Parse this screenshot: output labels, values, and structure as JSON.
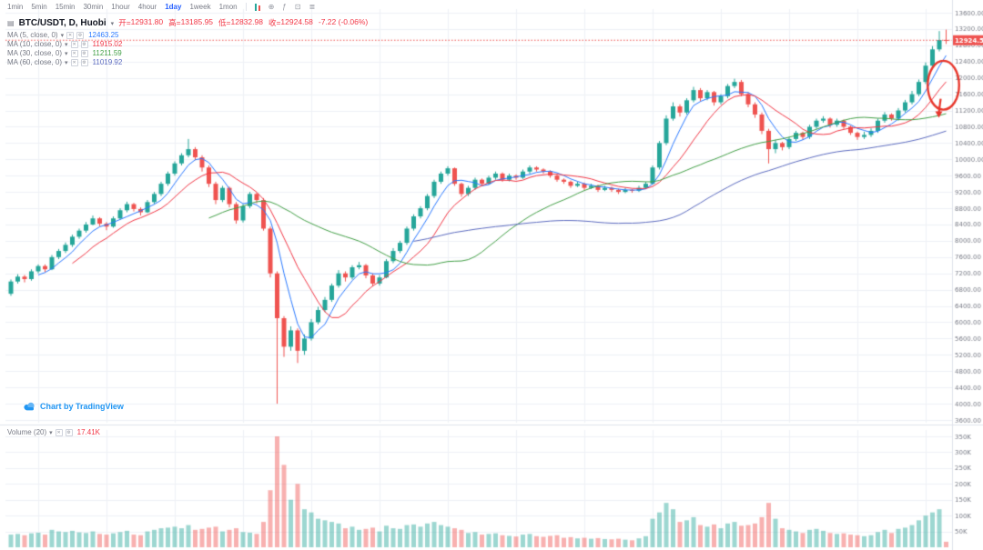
{
  "ui": {
    "caret_down": "▾",
    "hide_glyph": "✕",
    "settings_glyph": "⚙",
    "panel_icon": "▤"
  },
  "toolbar": {
    "timeframes": [
      "1min",
      "5min",
      "15min",
      "30min",
      "1hour",
      "4hour",
      "1day",
      "1week",
      "1mon"
    ],
    "active_timeframe": "1day",
    "active_color": "#2962ff",
    "icon_glyphs": {
      "compare": "⊕",
      "indicators": "ƒ",
      "screenshot": "⊡",
      "list": "≣"
    }
  },
  "header": {
    "symbol": "BTC/USDT, D, Huobi",
    "open_label": "开=",
    "open": "12931.80",
    "high_label": "高=",
    "high": "13185.95",
    "low_label": "低=",
    "low": "12832.98",
    "close_label": "收=",
    "close": "12924.58",
    "change": "-7.22 (-0.06%)",
    "change_color": "#f23645"
  },
  "indicators": {
    "ma": [
      {
        "label": "MA (5, close, 0)",
        "value": "12463.25",
        "color": "#2979ff"
      },
      {
        "label": "MA (10, close, 0)",
        "value": "11915.02",
        "color": "#f23645"
      },
      {
        "label": "MA (30, close, 0)",
        "value": "11211.59",
        "color": "#43a047"
      },
      {
        "label": "MA (60, close, 0)",
        "value": "11019.92",
        "color": "#5c6bc0"
      }
    ],
    "volume": {
      "label": "Volume (20)",
      "value": "17.41K",
      "color": "#f23645"
    }
  },
  "attribution": {
    "text": "Chart by TradingView"
  },
  "chart_data": {
    "type": "candlestick",
    "symbol": "BTC/USDT",
    "interval": "D",
    "exchange": "Huobi",
    "last_price": 12924.58,
    "price_axis": {
      "min": 3600,
      "max": 13600,
      "tick_step": 400
    },
    "volume_axis": {
      "scale_max": 350,
      "tick_values": [
        350,
        300,
        250,
        200,
        150,
        100,
        50
      ],
      "unit": "K"
    },
    "up_color": "#26a69a",
    "down_color": "#ef5350",
    "vol_up_color": "rgba(38,166,154,0.45)",
    "vol_down_color": "rgba(239,83,80,0.45)",
    "ma_periods": [
      5,
      10,
      30,
      60
    ],
    "ma_colors": [
      "#2979ff",
      "#f23645",
      "#43a047",
      "#5c6bc0"
    ],
    "annotation": {
      "shape": "ellipse-with-down-arrow",
      "color": "#e8382d",
      "index": 136.6,
      "price": 11820,
      "rx_candles": 2.3,
      "ry_price": 600,
      "arrow_tip_price": 11020
    },
    "candles": [
      [
        6700,
        7050,
        6650,
        7000,
        40
      ],
      [
        7000,
        7180,
        6950,
        7120,
        42
      ],
      [
        7120,
        7160,
        6980,
        7060,
        38
      ],
      [
        7060,
        7300,
        7020,
        7250,
        44
      ],
      [
        7250,
        7420,
        7200,
        7380,
        46
      ],
      [
        7380,
        7420,
        7230,
        7300,
        40
      ],
      [
        7300,
        7650,
        7280,
        7600,
        55
      ],
      [
        7600,
        7800,
        7550,
        7750,
        50
      ],
      [
        7750,
        7960,
        7700,
        7900,
        48
      ],
      [
        7900,
        8150,
        7850,
        8100,
        52
      ],
      [
        8100,
        8300,
        8050,
        8250,
        47
      ],
      [
        8250,
        8460,
        8200,
        8400,
        45
      ],
      [
        8400,
        8620,
        8380,
        8550,
        50
      ],
      [
        8550,
        8580,
        8360,
        8420,
        42
      ],
      [
        8420,
        8460,
        8260,
        8350,
        40
      ],
      [
        8350,
        8600,
        8320,
        8550,
        44
      ],
      [
        8550,
        8800,
        8520,
        8750,
        48
      ],
      [
        8750,
        8960,
        8700,
        8900,
        52
      ],
      [
        8900,
        8930,
        8720,
        8780,
        40
      ],
      [
        8780,
        8820,
        8620,
        8700,
        38
      ],
      [
        8700,
        9000,
        8680,
        8950,
        50
      ],
      [
        8950,
        9200,
        8900,
        9150,
        55
      ],
      [
        9150,
        9450,
        9100,
        9400,
        60
      ],
      [
        9400,
        9700,
        9350,
        9650,
        62
      ],
      [
        9650,
        9950,
        9600,
        9900,
        65
      ],
      [
        9900,
        10150,
        9850,
        10100,
        60
      ],
      [
        10100,
        10500,
        10050,
        10250,
        70
      ],
      [
        10250,
        10300,
        9980,
        10050,
        55
      ],
      [
        10050,
        10100,
        9700,
        9800,
        58
      ],
      [
        9800,
        9850,
        9320,
        9400,
        62
      ],
      [
        9400,
        9450,
        8900,
        9000,
        65
      ],
      [
        9000,
        9350,
        8950,
        9300,
        50
      ],
      [
        9300,
        9330,
        8820,
        8900,
        55
      ],
      [
        8900,
        8950,
        8420,
        8500,
        60
      ],
      [
        8500,
        8900,
        8450,
        8850,
        48
      ],
      [
        8850,
        9200,
        8800,
        9150,
        46
      ],
      [
        9150,
        9180,
        8920,
        9000,
        42
      ],
      [
        9000,
        9050,
        8250,
        8300,
        80
      ],
      [
        8300,
        8350,
        7100,
        7200,
        180
      ],
      [
        7200,
        7250,
        4000,
        6100,
        350
      ],
      [
        6100,
        6150,
        5150,
        5400,
        260
      ],
      [
        5400,
        5900,
        5300,
        5800,
        150
      ],
      [
        5800,
        5850,
        5000,
        5300,
        200
      ],
      [
        5300,
        5700,
        5200,
        5600,
        120
      ],
      [
        5600,
        6080,
        5550,
        6000,
        110
      ],
      [
        6000,
        6380,
        5950,
        6300,
        90
      ],
      [
        6300,
        6620,
        6250,
        6550,
        85
      ],
      [
        6550,
        6950,
        6500,
        6900,
        80
      ],
      [
        6900,
        7280,
        6850,
        7200,
        75
      ],
      [
        7200,
        7250,
        7000,
        7100,
        60
      ],
      [
        7100,
        7400,
        7050,
        7350,
        65
      ],
      [
        7350,
        7480,
        7300,
        7400,
        55
      ],
      [
        7400,
        7430,
        7080,
        7150,
        58
      ],
      [
        7150,
        7200,
        6880,
        6950,
        62
      ],
      [
        6950,
        7160,
        6900,
        7100,
        50
      ],
      [
        7100,
        7550,
        7080,
        7500,
        68
      ],
      [
        7500,
        7820,
        7450,
        7750,
        60
      ],
      [
        7750,
        8000,
        7700,
        7950,
        58
      ],
      [
        7950,
        8350,
        7900,
        8300,
        70
      ],
      [
        8300,
        8650,
        8250,
        8600,
        72
      ],
      [
        8600,
        8850,
        8550,
        8800,
        65
      ],
      [
        8800,
        9150,
        8750,
        9100,
        75
      ],
      [
        9100,
        9500,
        9050,
        9450,
        80
      ],
      [
        9450,
        9700,
        9400,
        9650,
        70
      ],
      [
        9650,
        9830,
        9600,
        9780,
        65
      ],
      [
        9780,
        9800,
        9350,
        9400,
        60
      ],
      [
        9400,
        9430,
        9080,
        9150,
        55
      ],
      [
        9150,
        9350,
        9100,
        9300,
        45
      ],
      [
        9300,
        9550,
        9250,
        9500,
        48
      ],
      [
        9500,
        9530,
        9350,
        9400,
        40
      ],
      [
        9400,
        9600,
        9380,
        9550,
        42
      ],
      [
        9550,
        9700,
        9500,
        9650,
        44
      ],
      [
        9650,
        9680,
        9450,
        9500,
        38
      ],
      [
        9500,
        9650,
        9460,
        9600,
        36
      ],
      [
        9600,
        9630,
        9500,
        9550,
        34
      ],
      [
        9550,
        9750,
        9520,
        9700,
        40
      ],
      [
        9700,
        9850,
        9650,
        9800,
        42
      ],
      [
        9800,
        9830,
        9700,
        9750,
        35
      ],
      [
        9750,
        9780,
        9650,
        9700,
        33
      ],
      [
        9700,
        9730,
        9550,
        9600,
        36
      ],
      [
        9600,
        9630,
        9450,
        9500,
        38
      ],
      [
        9500,
        9530,
        9400,
        9450,
        30
      ],
      [
        9450,
        9480,
        9300,
        9350,
        32
      ],
      [
        9350,
        9450,
        9320,
        9400,
        28
      ],
      [
        9400,
        9430,
        9250,
        9300,
        30
      ],
      [
        9300,
        9400,
        9270,
        9350,
        27
      ],
      [
        9350,
        9380,
        9200,
        9250,
        29
      ],
      [
        9250,
        9350,
        9220,
        9300,
        26
      ],
      [
        9300,
        9330,
        9200,
        9250,
        25
      ],
      [
        9250,
        9280,
        9150,
        9200,
        27
      ],
      [
        9200,
        9300,
        9170,
        9250,
        24
      ],
      [
        9250,
        9270,
        9180,
        9230,
        22
      ],
      [
        9230,
        9350,
        9200,
        9300,
        28
      ],
      [
        9300,
        9450,
        9270,
        9400,
        35
      ],
      [
        9400,
        9850,
        9380,
        9800,
        90
      ],
      [
        9800,
        10450,
        9750,
        10400,
        110
      ],
      [
        10400,
        11080,
        10350,
        11000,
        140
      ],
      [
        11000,
        11400,
        10950,
        11300,
        120
      ],
      [
        11300,
        11350,
        11050,
        11150,
        80
      ],
      [
        11150,
        11500,
        11100,
        11450,
        85
      ],
      [
        11450,
        11780,
        11400,
        11700,
        95
      ],
      [
        11700,
        11750,
        11420,
        11500,
        70
      ],
      [
        11500,
        11700,
        11450,
        11650,
        65
      ],
      [
        11650,
        11680,
        11320,
        11400,
        72
      ],
      [
        11400,
        11600,
        11350,
        11550,
        60
      ],
      [
        11550,
        11850,
        11500,
        11800,
        75
      ],
      [
        11800,
        11980,
        11750,
        11900,
        80
      ],
      [
        11900,
        11950,
        11550,
        11600,
        68
      ],
      [
        11600,
        11650,
        11280,
        11350,
        70
      ],
      [
        11350,
        11400,
        11020,
        11100,
        75
      ],
      [
        11100,
        11150,
        10620,
        10700,
        95
      ],
      [
        10700,
        10750,
        9900,
        10250,
        140
      ],
      [
        10250,
        10480,
        10150,
        10400,
        90
      ],
      [
        10400,
        10430,
        10220,
        10300,
        60
      ],
      [
        10300,
        10550,
        10250,
        10500,
        55
      ],
      [
        10500,
        10700,
        10450,
        10650,
        50
      ],
      [
        10650,
        10680,
        10480,
        10550,
        45
      ],
      [
        10550,
        10850,
        10500,
        10800,
        55
      ],
      [
        10800,
        11000,
        10750,
        10950,
        58
      ],
      [
        10950,
        11060,
        10900,
        11000,
        52
      ],
      [
        11000,
        11030,
        10780,
        10850,
        45
      ],
      [
        10850,
        11000,
        10800,
        10950,
        42
      ],
      [
        10950,
        10980,
        10750,
        10800,
        44
      ],
      [
        10800,
        10830,
        10600,
        10650,
        40
      ],
      [
        10650,
        10680,
        10480,
        10550,
        38
      ],
      [
        10550,
        10680,
        10500,
        10600,
        35
      ],
      [
        10600,
        10760,
        10550,
        10700,
        38
      ],
      [
        10700,
        11000,
        10650,
        10950,
        48
      ],
      [
        10950,
        11160,
        10900,
        11100,
        55
      ],
      [
        11100,
        11130,
        10950,
        11000,
        45
      ],
      [
        11000,
        11260,
        10950,
        11200,
        58
      ],
      [
        11200,
        11460,
        11150,
        11400,
        62
      ],
      [
        11400,
        11680,
        11350,
        11600,
        70
      ],
      [
        11600,
        11960,
        11550,
        11900,
        85
      ],
      [
        11900,
        12380,
        11850,
        12300,
        100
      ],
      [
        12300,
        12780,
        12250,
        12700,
        110
      ],
      [
        12700,
        13150,
        12650,
        12930,
        120
      ],
      [
        12931.8,
        13185.95,
        12832.98,
        12924.58,
        17.41
      ]
    ]
  }
}
